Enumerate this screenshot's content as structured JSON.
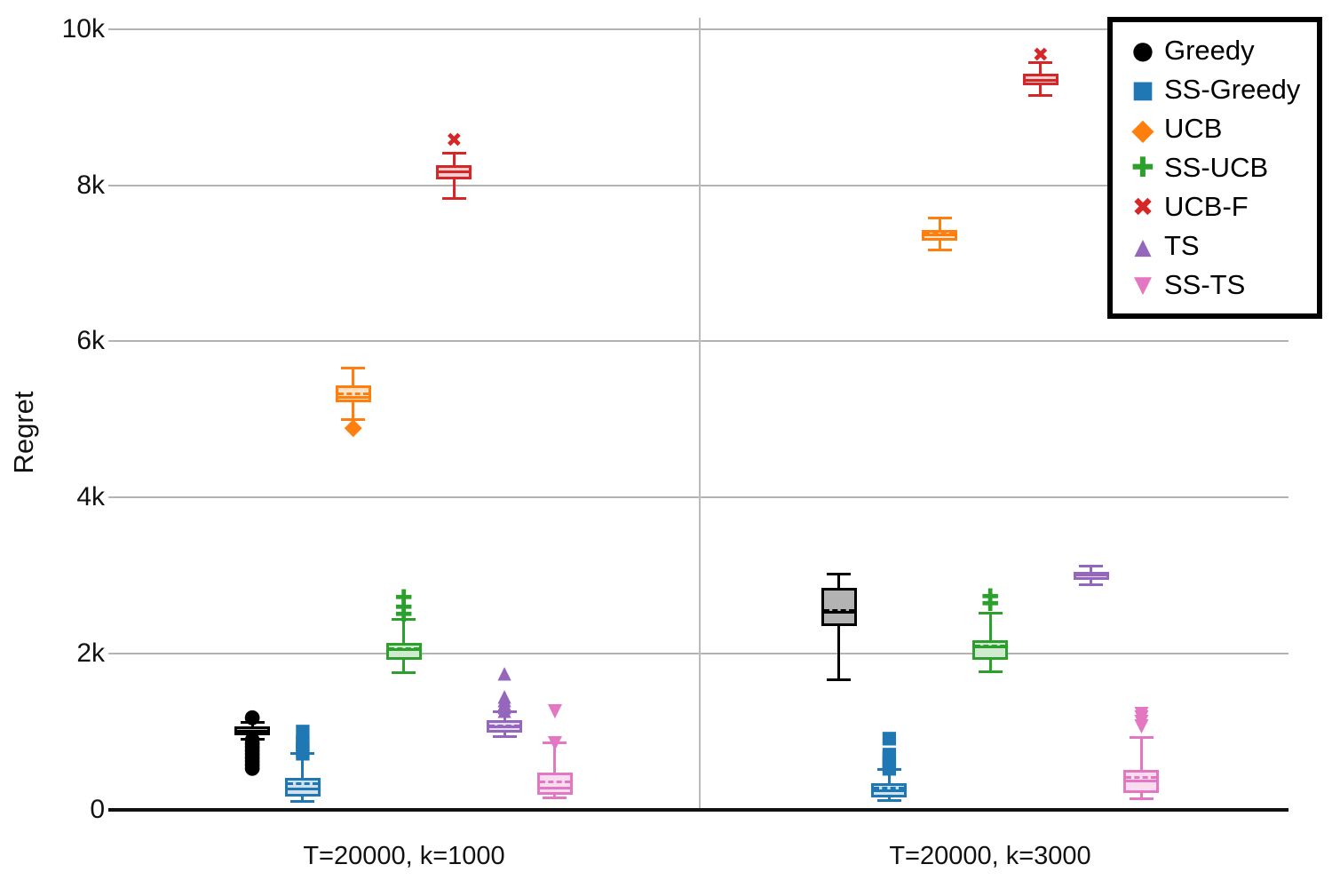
{
  "chart_data": {
    "type": "box",
    "title": "",
    "xlabel": "",
    "ylabel": "Regret",
    "ylim": [
      0,
      10400
    ],
    "grid": "horizontal",
    "legend_position": "top-right",
    "yticks": [
      {
        "value": 0,
        "label": "0"
      },
      {
        "value": 2000,
        "label": "2k"
      },
      {
        "value": 4000,
        "label": "4k"
      },
      {
        "value": 6000,
        "label": "6k"
      },
      {
        "value": 8000,
        "label": "8k"
      },
      {
        "value": 10000,
        "label": "10k"
      }
    ],
    "legend": [
      {
        "label": "Greedy",
        "marker": "circle",
        "color": "#000000"
      },
      {
        "label": "SS-Greedy",
        "marker": "square",
        "color": "#1f77b4"
      },
      {
        "label": "UCB",
        "marker": "diamond",
        "color": "#ff7f0e"
      },
      {
        "label": "SS-UCB",
        "marker": "plus",
        "color": "#2ca02c"
      },
      {
        "label": "UCB-F",
        "marker": "x",
        "color": "#d62728"
      },
      {
        "label": "TS",
        "marker": "triangle-up",
        "color": "#9467bd"
      },
      {
        "label": "SS-TS",
        "marker": "triangle-down",
        "color": "#e377c2"
      }
    ],
    "groups": [
      {
        "label": "T=20000, k=1000",
        "boxes": [
          {
            "series": "Greedy",
            "color": "#000000",
            "fill": "#b3b3b3",
            "marker": "circle",
            "whisker_low": 900,
            "q1": 950,
            "median": 1000,
            "mean": 1005,
            "q3": 1065,
            "whisker_high": 1115,
            "outliers": [
              1180,
              895,
              850,
              805,
              760,
              715,
              670,
              625,
              580,
              535
            ]
          },
          {
            "series": "SS-Greedy",
            "color": "#1f77b4",
            "fill": "#d0e1f0",
            "marker": "square",
            "whisker_low": 100,
            "q1": 170,
            "median": 260,
            "mean": 330,
            "q3": 405,
            "whisker_high": 715,
            "outliers": [
              1015,
              895,
              855,
              815,
              775,
              735
            ]
          },
          {
            "series": "UCB",
            "color": "#ff7f0e",
            "fill": "#ffe3c8",
            "marker": "diamond",
            "whisker_low": 4995,
            "q1": 5220,
            "median": 5280,
            "mean": 5330,
            "q3": 5440,
            "whisker_high": 5655,
            "outliers": [
              4905
            ]
          },
          {
            "series": "SS-UCB",
            "color": "#2ca02c",
            "fill": "#d0ead0",
            "marker": "plus",
            "whisker_low": 1750,
            "q1": 1920,
            "median": 2050,
            "mean": 2065,
            "q3": 2135,
            "whisker_high": 2435,
            "outliers": [
              2715,
              2590,
              2500
            ]
          },
          {
            "series": "UCB-F",
            "color": "#d62728",
            "fill": "#f6d0d0",
            "marker": "x",
            "whisker_low": 7830,
            "q1": 8080,
            "median": 8170,
            "mean": 8175,
            "q3": 8260,
            "whisker_high": 8410,
            "outliers": [
              8570
            ]
          },
          {
            "series": "TS",
            "color": "#9467bd",
            "fill": "#e5dbf0",
            "marker": "triangle-up",
            "whisker_low": 930,
            "q1": 985,
            "median": 1060,
            "mean": 1070,
            "q3": 1145,
            "whisker_high": 1250,
            "outliers": [
              1760,
              1465,
              1420,
              1375,
              1330,
              1285
            ]
          },
          {
            "series": "SS-TS",
            "color": "#e377c2",
            "fill": "#f9dcef",
            "marker": "triangle-down",
            "whisker_low": 150,
            "q1": 190,
            "median": 270,
            "mean": 355,
            "q3": 475,
            "whisker_high": 850,
            "outliers": [
              1270,
              860
            ]
          }
        ]
      },
      {
        "label": "T=20000, k=3000",
        "boxes": [
          {
            "series": "Greedy",
            "color": "#000000",
            "fill": "#b3b3b3",
            "marker": "circle",
            "whisker_low": 1660,
            "q1": 2350,
            "median": 2525,
            "mean": 2550,
            "q3": 2840,
            "whisker_high": 3015,
            "outliers": []
          },
          {
            "series": "SS-Greedy",
            "color": "#1f77b4",
            "fill": "#d0e1f0",
            "marker": "square",
            "whisker_low": 110,
            "q1": 155,
            "median": 235,
            "mean": 270,
            "q3": 340,
            "whisker_high": 510,
            "outliers": [
              930,
              720,
              675,
              630,
              585,
              540
            ]
          },
          {
            "series": "UCB",
            "color": "#ff7f0e",
            "fill": "#ffe3c8",
            "marker": "diamond",
            "whisker_low": 7170,
            "q1": 7295,
            "median": 7370,
            "mean": 7375,
            "q3": 7430,
            "whisker_high": 7580,
            "outliers": []
          },
          {
            "series": "SS-UCB",
            "color": "#2ca02c",
            "fill": "#d0ead0",
            "marker": "plus",
            "whisker_low": 1760,
            "q1": 1920,
            "median": 2085,
            "mean": 2095,
            "q3": 2170,
            "whisker_high": 2510,
            "outliers": [
              2730,
              2630
            ]
          },
          {
            "series": "UCB-F",
            "color": "#d62728",
            "fill": "#f6d0d0",
            "marker": "x",
            "whisker_low": 9150,
            "q1": 9285,
            "median": 9340,
            "mean": 9345,
            "q3": 9435,
            "whisker_high": 9570,
            "outliers": [
              9660
            ]
          },
          {
            "series": "TS",
            "color": "#9467bd",
            "fill": "#e5dbf0",
            "marker": "triangle-up",
            "whisker_low": 2885,
            "q1": 2945,
            "median": 3000,
            "mean": 3005,
            "q3": 3045,
            "whisker_high": 3115,
            "outliers": []
          },
          {
            "series": "SS-TS",
            "color": "#e377c2",
            "fill": "#f9dcef",
            "marker": "triangle-down",
            "whisker_low": 135,
            "q1": 215,
            "median": 360,
            "mean": 410,
            "q3": 510,
            "whisker_high": 920,
            "outliers": [
              1240,
              1185,
              1130,
              1075
            ]
          }
        ]
      }
    ]
  }
}
